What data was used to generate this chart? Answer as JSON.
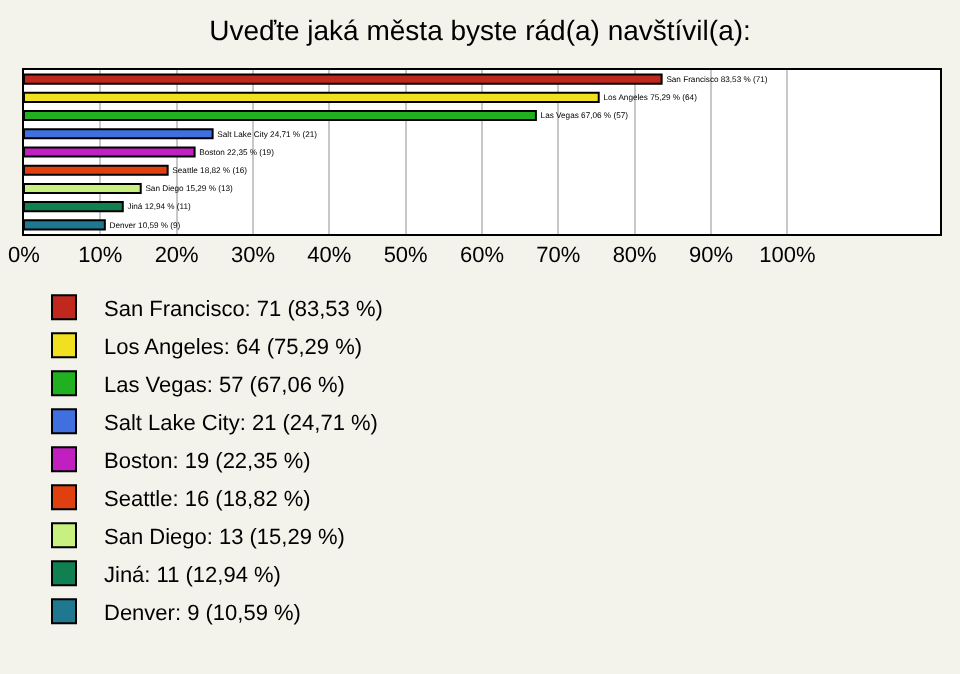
{
  "chart_data": {
    "type": "bar",
    "orientation": "horizontal",
    "title": "Uveďte jaká města byste rád(a) navštívil(a):",
    "categories": [
      null,
      null,
      null,
      null,
      null,
      null,
      null,
      null,
      null
    ],
    "series": [
      {
        "name": "San Francisco: 71 (83,53 %)",
        "color": "#c0281e",
        "values": [
          83.53,
          null,
          null,
          null,
          null,
          null,
          null,
          null,
          null
        ],
        "value_labels": [
          "San Francisco 83,53 % (71)",
          null,
          null,
          null,
          null,
          null,
          null,
          null,
          null
        ]
      },
      {
        "name": "Los Angeles: 64 (75,29 %)",
        "color": "#f0e020",
        "values": [
          null,
          75.29,
          null,
          null,
          null,
          null,
          null,
          null,
          null
        ],
        "value_labels": [
          null,
          "Los Angeles 75,29 % (64)",
          null,
          null,
          null,
          null,
          null,
          null,
          null
        ]
      },
      {
        "name": "Las Vegas: 57 (67,06 %)",
        "color": "#20b020",
        "values": [
          null,
          null,
          67.06,
          null,
          null,
          null,
          null,
          null,
          null
        ],
        "value_labels": [
          null,
          null,
          "Las Vegas 67,06 % (57)",
          null,
          null,
          null,
          null,
          null,
          null
        ]
      },
      {
        "name": "Salt Lake City: 21 (24,71 %)",
        "color": "#4070e0",
        "values": [
          null,
          null,
          null,
          24.71,
          null,
          null,
          null,
          null,
          null
        ],
        "value_labels": [
          null,
          null,
          null,
          "Salt Lake City 24,71 % (21)",
          null,
          null,
          null,
          null,
          null
        ]
      },
      {
        "name": "Boston: 19 (22,35 %)",
        "color": "#c020c0",
        "values": [
          null,
          null,
          null,
          null,
          22.35,
          null,
          null,
          null,
          null
        ],
        "value_labels": [
          null,
          null,
          null,
          null,
          "Boston 22,35 % (19)",
          null,
          null,
          null,
          null
        ]
      },
      {
        "name": "Seattle: 16 (18,82 %)",
        "color": "#e04010",
        "values": [
          null,
          null,
          null,
          null,
          null,
          18.82,
          null,
          null,
          null
        ],
        "value_labels": [
          null,
          null,
          null,
          null,
          null,
          "Seattle 18,82 % (16)",
          null,
          null,
          null
        ]
      },
      {
        "name": "San Diego: 13 (15,29 %)",
        "color": "#c8f080",
        "values": [
          null,
          null,
          null,
          null,
          null,
          null,
          15.29,
          null,
          null
        ],
        "value_labels": [
          null,
          null,
          null,
          null,
          null,
          null,
          "San Diego 15,29 % (13)",
          null,
          null
        ]
      },
      {
        "name": "Jiná: 11 (12,94 %)",
        "color": "#108050",
        "values": [
          null,
          null,
          null,
          null,
          null,
          null,
          null,
          12.94,
          null
        ],
        "value_labels": [
          null,
          null,
          null,
          null,
          null,
          null,
          null,
          "Jiná 12,94 % (11)",
          null
        ]
      },
      {
        "name": "Denver: 9 (10,59 %)",
        "color": "#207890",
        "values": [
          null,
          null,
          null,
          null,
          null,
          null,
          null,
          null,
          10.59
        ],
        "value_labels": [
          null,
          null,
          null,
          null,
          null,
          null,
          null,
          null,
          "Denver 10,59 % (9)"
        ]
      }
    ],
    "xlim": [
      0,
      120
    ],
    "xticks": [
      {
        "value": 0,
        "label": "0%"
      },
      {
        "value": 10,
        "label": "10%"
      },
      {
        "value": 20,
        "label": "20%"
      },
      {
        "value": 30,
        "label": "30%"
      },
      {
        "value": 40,
        "label": "40%"
      },
      {
        "value": 50,
        "label": "50%"
      },
      {
        "value": 60,
        "label": "60%"
      },
      {
        "value": 70,
        "label": "70%"
      },
      {
        "value": 80,
        "label": "80%"
      },
      {
        "value": 90,
        "label": "90%"
      },
      {
        "value": 100,
        "label": "100%"
      }
    ],
    "tick_labels": "x",
    "grid": "x",
    "legend": "bottom"
  }
}
